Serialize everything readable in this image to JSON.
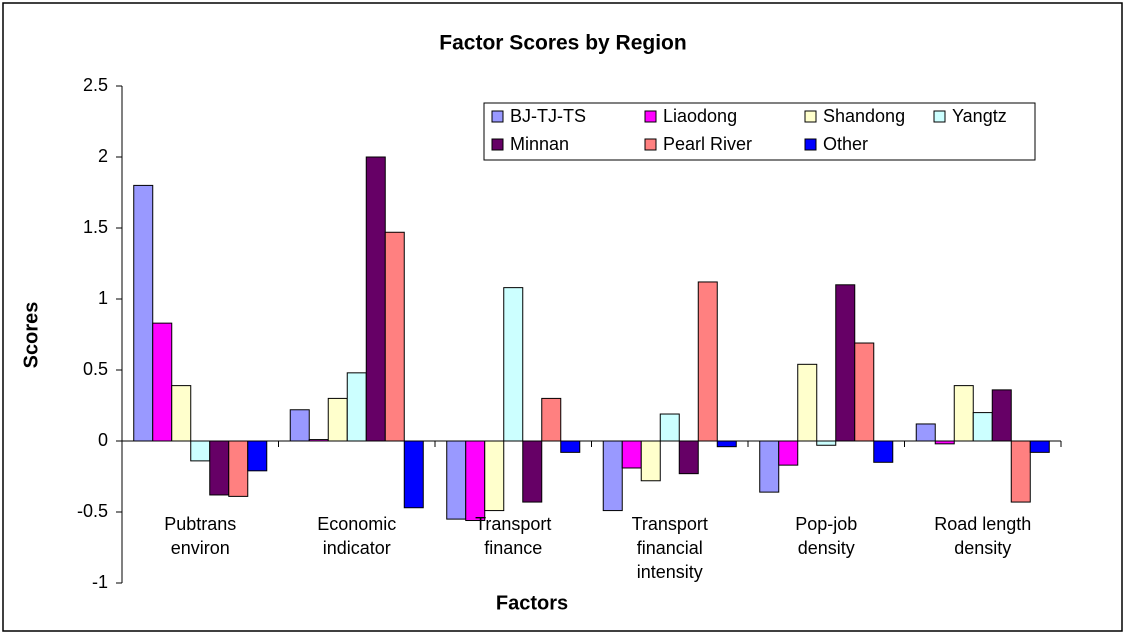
{
  "chart_data": {
    "type": "bar",
    "title": "Factor Scores by Region",
    "x_label": "Factors",
    "y_label": "Scores",
    "categories": [
      "Pubtrans\nenviron",
      "Economic\nindicator",
      "Transport\nfinance",
      "Transport\nfinancial\nintensity",
      "Pop-job\ndensity",
      "Road length\ndensity"
    ],
    "series": [
      {
        "name": "BJ-TJ-TS",
        "color": "#9999ff",
        "values": [
          1.8,
          0.22,
          -0.55,
          -0.49,
          -0.36,
          0.12
        ]
      },
      {
        "name": "Liaodong",
        "color": "#ff00ff",
        "values": [
          0.83,
          0.01,
          -0.56,
          -0.19,
          -0.17,
          -0.02
        ]
      },
      {
        "name": "Shandong",
        "color": "#ffffcc",
        "values": [
          0.39,
          0.3,
          -0.49,
          -0.28,
          0.54,
          0.39
        ]
      },
      {
        "name": "Yangtz",
        "color": "#ccffff",
        "values": [
          -0.14,
          0.48,
          1.08,
          0.19,
          -0.03,
          0.2
        ]
      },
      {
        "name": "Minnan",
        "color": "#660066",
        "values": [
          -0.38,
          2.0,
          -0.43,
          -0.23,
          1.1,
          0.36
        ]
      },
      {
        "name": "Pearl River",
        "color": "#ff8080",
        "values": [
          -0.39,
          1.47,
          0.3,
          1.12,
          0.69,
          -0.43
        ]
      },
      {
        "name": "Other",
        "color": "#0000ff",
        "values": [
          -0.21,
          -0.47,
          -0.08,
          -0.04,
          -0.15,
          -0.08
        ]
      }
    ],
    "ylim": [
      -1,
      2.5
    ],
    "yticks": [
      2.5,
      2,
      1.5,
      1,
      0.5,
      0,
      -0.5,
      -1
    ],
    "grid": false,
    "legend": "top-right"
  }
}
